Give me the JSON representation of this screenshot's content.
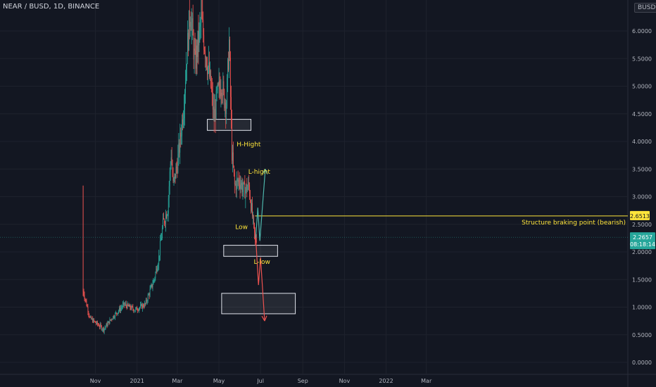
{
  "header": {
    "title": "NEAR / BUSD, 1D, BINANCE",
    "currency": "BUSD"
  },
  "price_badges": {
    "structure": {
      "value": "2.6513",
      "color": "#ffe53b"
    },
    "current": {
      "value": "2.2657",
      "countdown": "08:18:14",
      "color": "#26a69a"
    }
  },
  "annotations": [
    {
      "text": "H-Hight",
      "y": 3.95
    },
    {
      "text": "L-hight",
      "y": 3.45
    },
    {
      "text": "Low",
      "y": 2.45
    },
    {
      "text": "L-low",
      "y": 1.82
    },
    {
      "text": "Structure braking point (bearish)",
      "y": 2.5
    }
  ],
  "chart_data": {
    "type": "candlestick",
    "symbol": "NEAR / BUSD",
    "interval": "1D",
    "exchange": "BINANCE",
    "x_ticks": [
      "Nov",
      "2021",
      "Mar",
      "May",
      "Jul",
      "Sep",
      "Nov",
      "2022",
      "Mar"
    ],
    "y_ticks": [
      "0.0000",
      "0.5000",
      "1.0000",
      "1.5000",
      "2.0000",
      "2.5000",
      "3.0000",
      "3.5000",
      "4.0000",
      "4.5000",
      "5.0000",
      "5.5000",
      "6.0000"
    ],
    "ylim": [
      0,
      6.5
    ],
    "colors": {
      "up": "#26a69a",
      "down": "#ef5350",
      "structure_line": "#ffe53b",
      "current_line": "#26a69a"
    },
    "price_path": [
      [
        "2020-10-14",
        1.3
      ],
      [
        "2020-10-18",
        1.1
      ],
      [
        "2020-10-24",
        0.8
      ],
      [
        "2020-11-03",
        0.7
      ],
      [
        "2020-11-13",
        0.6
      ],
      [
        "2020-11-25",
        0.8
      ],
      [
        "2020-12-13",
        1.05
      ],
      [
        "2020-12-29",
        0.95
      ],
      [
        "2021-01-13",
        1.05
      ],
      [
        "2021-01-26",
        1.5
      ],
      [
        "2021-02-02",
        1.9
      ],
      [
        "2021-02-08",
        2.5
      ],
      [
        "2021-02-15",
        2.8
      ],
      [
        "2021-02-20",
        3.8
      ],
      [
        "2021-02-23",
        3.2
      ],
      [
        "2021-03-01",
        3.6
      ],
      [
        "2021-03-05",
        4.0
      ],
      [
        "2021-03-10",
        4.6
      ],
      [
        "2021-03-15",
        5.6
      ],
      [
        "2021-03-20",
        6.4
      ],
      [
        "2021-03-27",
        5.4
      ],
      [
        "2021-04-05",
        6.2
      ],
      [
        "2021-04-12",
        5.6
      ],
      [
        "2021-04-19",
        5.0
      ],
      [
        "2021-04-24",
        4.4
      ],
      [
        "2021-04-28",
        4.8
      ],
      [
        "2021-05-05",
        5.1
      ],
      [
        "2021-05-08",
        4.8
      ],
      [
        "2021-05-12",
        4.7
      ],
      [
        "2021-05-16",
        5.8
      ],
      [
        "2021-05-20",
        3.8
      ],
      [
        "2021-05-24",
        3.2
      ],
      [
        "2021-05-31",
        3.3
      ],
      [
        "2021-06-07",
        3.1
      ],
      [
        "2021-06-14",
        3.2
      ],
      [
        "2021-06-19",
        2.65
      ],
      [
        "2021-06-23",
        2.2
      ],
      [
        "2021-06-25",
        2.27
      ]
    ],
    "zones": [
      {
        "from": "2021-04-14",
        "to": "2021-06-17",
        "low": 4.2,
        "high": 4.4
      },
      {
        "from": "2021-05-08",
        "to": "2021-07-26",
        "low": 1.92,
        "high": 2.12
      },
      {
        "from": "2021-05-05",
        "to": "2021-08-21",
        "low": 0.88,
        "high": 1.25
      }
    ],
    "horizontal_lines": [
      {
        "name": "Structure braking point (bearish)",
        "value": 2.6513,
        "from": "2021-06-23"
      },
      {
        "name": "current price",
        "value": 2.2657,
        "from": "2020-10-01"
      }
    ],
    "projection_bullish": [
      [
        "2021-06-24",
        2.25
      ],
      [
        "2021-06-27",
        2.8
      ],
      [
        "2021-06-30",
        2.2
      ],
      [
        "2021-07-08",
        3.5
      ]
    ],
    "projection_bearish": [
      [
        "2021-06-24",
        2.25
      ],
      [
        "2021-06-28",
        1.4
      ],
      [
        "2021-07-01",
        1.9
      ],
      [
        "2021-07-07",
        0.75
      ]
    ],
    "grid": true,
    "legend": "top-left"
  }
}
